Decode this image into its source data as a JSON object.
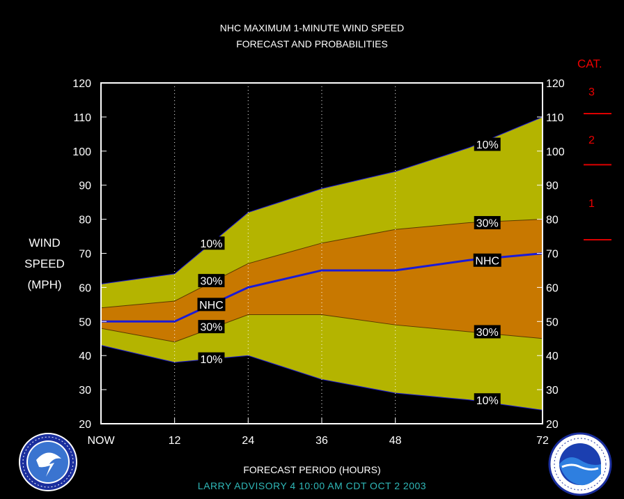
{
  "header": {
    "title_line1": "NHC MAXIMUM 1-MINUTE WIND SPEED",
    "title_line2": "FORECAST AND PROBABILITIES"
  },
  "yaxis_label": [
    "WIND",
    "SPEED",
    "(MPH)"
  ],
  "xaxis_title": "FORECAST PERIOD (HOURS)",
  "advisory": "LARRY   ADVISORY  4 10:00  AM  CDT  OCT  2  2003",
  "category_scale": {
    "title": "CAT.",
    "categories": [
      "3",
      "2",
      "1"
    ],
    "thresholds": [
      111,
      96,
      74
    ],
    "color": "#dd0000"
  },
  "chart_data": {
    "type": "area",
    "x": [
      0,
      12,
      24,
      36,
      48,
      60,
      72
    ],
    "x_tick_labels": [
      "NOW",
      "12",
      "24",
      "36",
      "48",
      "",
      "72"
    ],
    "x_tick_positions": [
      0,
      12,
      24,
      36,
      48,
      72
    ],
    "xlim": [
      0,
      72
    ],
    "ylim": [
      20,
      120
    ],
    "y_ticks": [
      20,
      30,
      40,
      50,
      60,
      70,
      80,
      90,
      100,
      110,
      120
    ],
    "y_tick_labels_both_sides": true,
    "dotted_vertical_gridlines_at": [
      12,
      24,
      36,
      48
    ],
    "series": [
      {
        "name": "upper 10%",
        "values": [
          61,
          64,
          82,
          89,
          94,
          101,
          110
        ]
      },
      {
        "name": "upper 30%",
        "values": [
          54,
          56,
          67,
          73,
          77,
          79,
          80
        ]
      },
      {
        "name": "NHC",
        "values": [
          50,
          50,
          60,
          65,
          65,
          68,
          70
        ]
      },
      {
        "name": "lower 30%",
        "values": [
          48,
          44,
          52,
          52,
          49,
          47,
          45
        ]
      },
      {
        "name": "lower 10%",
        "values": [
          43,
          38,
          40,
          33,
          29,
          27,
          24
        ]
      }
    ],
    "bands": [
      {
        "between": [
          "lower 10%",
          "upper 10%"
        ],
        "color": "#b4b400"
      },
      {
        "between": [
          "lower 30%",
          "upper 30%"
        ],
        "color": "#c87800"
      }
    ],
    "annotations": [
      {
        "text": "10%",
        "x": 18,
        "y": 73
      },
      {
        "text": "30%",
        "x": 18,
        "y": 62
      },
      {
        "text": "NHC",
        "x": 18,
        "y": 55
      },
      {
        "text": "30%",
        "x": 18,
        "y": 48.5
      },
      {
        "text": "10%",
        "x": 18,
        "y": 39
      },
      {
        "text": "10%",
        "x": 63,
        "y": 102
      },
      {
        "text": "30%",
        "x": 63,
        "y": 79
      },
      {
        "text": "NHC",
        "x": 63,
        "y": 68
      },
      {
        "text": "30%",
        "x": 63,
        "y": 47
      },
      {
        "text": "10%",
        "x": 63,
        "y": 27
      }
    ],
    "colors": {
      "nhc_line": "#1a1ad8",
      "band_edge": "#1a1ad8",
      "background": "#000000",
      "axis": "#ffffff",
      "label_box": "#000000"
    }
  }
}
